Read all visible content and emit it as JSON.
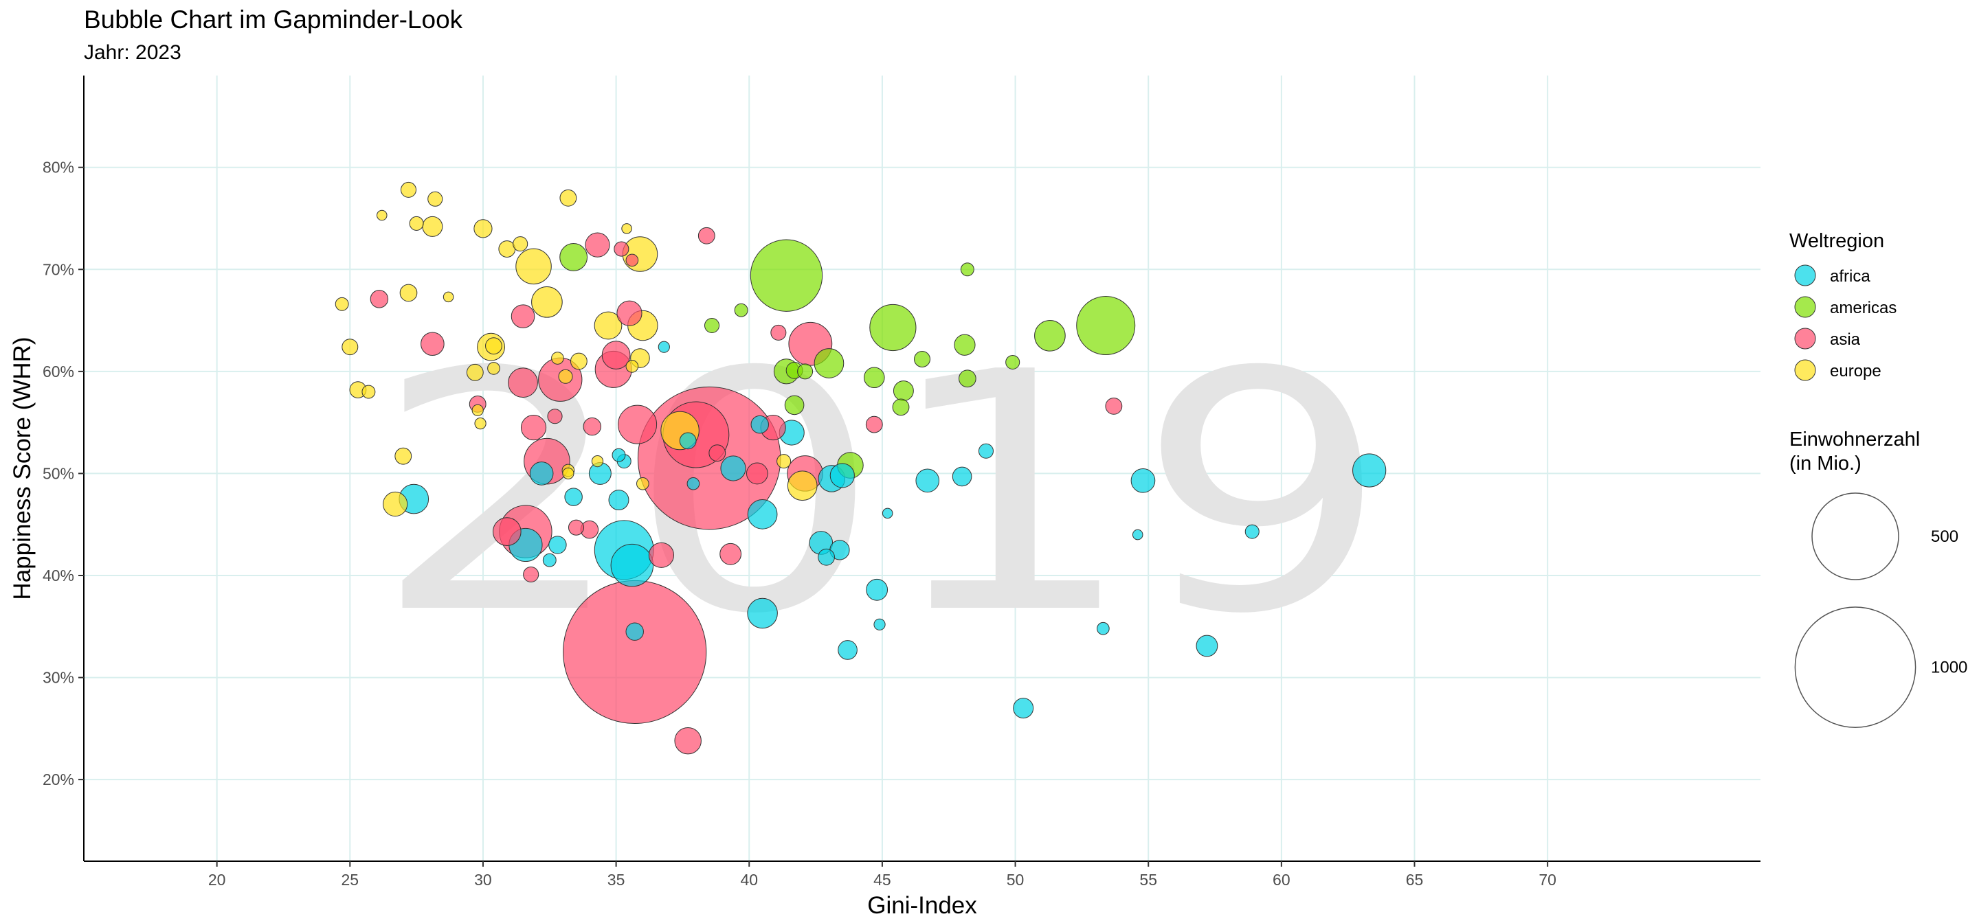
{
  "title": "Bubble Chart im Gapminder-Look",
  "subtitle": "Jahr: 2023",
  "watermark": "2019",
  "chart_data": {
    "type": "scatter",
    "xlabel": "Gini-Index",
    "ylabel": "Happiness Score (WHR)",
    "xlim": [
      15,
      78
    ],
    "ylim": [
      0.12,
      0.89
    ],
    "x_ticks": [
      20,
      25,
      30,
      35,
      40,
      45,
      50,
      55,
      60,
      65,
      70
    ],
    "x_tick_labels": [
      "20",
      "25",
      "30",
      "35",
      "40",
      "45",
      "50",
      "55",
      "60",
      "65",
      "70"
    ],
    "y_ticks": [
      0.2,
      0.3,
      0.4,
      0.5,
      0.6,
      0.7,
      0.8
    ],
    "y_tick_labels": [
      "20%",
      "30%",
      "40%",
      "50%",
      "60%",
      "70%",
      "80%"
    ],
    "grid": true,
    "legend_position": "right",
    "colors": {
      "africa": "#00d4e6",
      "americas": "#7fe000",
      "asia": "#ff4d6e",
      "europe": "#ffe119"
    },
    "color_legend": {
      "title": "Weltregion",
      "entries": [
        {
          "key": "africa",
          "label": "africa"
        },
        {
          "key": "americas",
          "label": "americas"
        },
        {
          "key": "asia",
          "label": "asia"
        },
        {
          "key": "europe",
          "label": "europe"
        }
      ]
    },
    "size_legend": {
      "title_line1": "Einwohnerzahl",
      "title_line2": "(in Mio.)",
      "entries": [
        {
          "value": 500,
          "label": "500"
        },
        {
          "value": 1000,
          "label": "1000"
        }
      ]
    },
    "series": [
      {
        "name": "africa",
        "points": [
          {
            "x": 35.3,
            "y": 0.425,
            "pop": 220
          },
          {
            "x": 35.6,
            "y": 0.41,
            "pop": 105
          },
          {
            "x": 27.4,
            "y": 0.475,
            "pop": 45
          },
          {
            "x": 31.6,
            "y": 0.43,
            "pop": 60
          },
          {
            "x": 32.2,
            "y": 0.5,
            "pop": 25
          },
          {
            "x": 32.8,
            "y": 0.43,
            "pop": 12
          },
          {
            "x": 32.5,
            "y": 0.415,
            "pop": 5
          },
          {
            "x": 33.4,
            "y": 0.477,
            "pop": 12
          },
          {
            "x": 34.4,
            "y": 0.5,
            "pop": 22
          },
          {
            "x": 35.1,
            "y": 0.518,
            "pop": 5
          },
          {
            "x": 35.3,
            "y": 0.512,
            "pop": 6
          },
          {
            "x": 35.1,
            "y": 0.474,
            "pop": 17
          },
          {
            "x": 35.7,
            "y": 0.345,
            "pop": 12
          },
          {
            "x": 36.8,
            "y": 0.624,
            "pop": 3
          },
          {
            "x": 37.7,
            "y": 0.532,
            "pop": 10
          },
          {
            "x": 37.9,
            "y": 0.49,
            "pop": 4
          },
          {
            "x": 39.4,
            "y": 0.505,
            "pop": 30
          },
          {
            "x": 40.4,
            "y": 0.548,
            "pop": 12
          },
          {
            "x": 40.5,
            "y": 0.46,
            "pop": 45
          },
          {
            "x": 40.5,
            "y": 0.363,
            "pop": 47
          },
          {
            "x": 41.6,
            "y": 0.54,
            "pop": 30
          },
          {
            "x": 42.7,
            "y": 0.432,
            "pop": 25
          },
          {
            "x": 42.9,
            "y": 0.418,
            "pop": 10
          },
          {
            "x": 43.1,
            "y": 0.495,
            "pop": 35
          },
          {
            "x": 43.5,
            "y": 0.498,
            "pop": 28
          },
          {
            "x": 43.4,
            "y": 0.425,
            "pop": 16
          },
          {
            "x": 43.7,
            "y": 0.327,
            "pop": 15
          },
          {
            "x": 44.8,
            "y": 0.386,
            "pop": 20
          },
          {
            "x": 44.9,
            "y": 0.352,
            "pop": 3
          },
          {
            "x": 45.2,
            "y": 0.461,
            "pop": 2
          },
          {
            "x": 46.7,
            "y": 0.493,
            "pop": 25
          },
          {
            "x": 48.0,
            "y": 0.497,
            "pop": 15
          },
          {
            "x": 48.9,
            "y": 0.522,
            "pop": 7
          },
          {
            "x": 50.3,
            "y": 0.27,
            "pop": 17
          },
          {
            "x": 53.3,
            "y": 0.348,
            "pop": 4
          },
          {
            "x": 54.6,
            "y": 0.44,
            "pop": 2
          },
          {
            "x": 54.8,
            "y": 0.493,
            "pop": 27
          },
          {
            "x": 57.2,
            "y": 0.331,
            "pop": 20
          },
          {
            "x": 58.9,
            "y": 0.443,
            "pop": 6
          },
          {
            "x": 63.3,
            "y": 0.503,
            "pop": 60
          }
        ]
      },
      {
        "name": "americas",
        "points": [
          {
            "x": 33.4,
            "y": 0.712,
            "pop": 38
          },
          {
            "x": 38.6,
            "y": 0.645,
            "pop": 7
          },
          {
            "x": 39.7,
            "y": 0.66,
            "pop": 5
          },
          {
            "x": 41.4,
            "y": 0.694,
            "pop": 335
          },
          {
            "x": 41.4,
            "y": 0.6,
            "pop": 30
          },
          {
            "x": 41.7,
            "y": 0.601,
            "pop": 10
          },
          {
            "x": 41.7,
            "y": 0.567,
            "pop": 15
          },
          {
            "x": 42.1,
            "y": 0.6,
            "pop": 8
          },
          {
            "x": 43.0,
            "y": 0.608,
            "pop": 45
          },
          {
            "x": 43.8,
            "y": 0.508,
            "pop": 33
          },
          {
            "x": 44.7,
            "y": 0.594,
            "pop": 18
          },
          {
            "x": 45.4,
            "y": 0.643,
            "pop": 128
          },
          {
            "x": 45.8,
            "y": 0.581,
            "pop": 17
          },
          {
            "x": 45.7,
            "y": 0.565,
            "pop": 10
          },
          {
            "x": 46.5,
            "y": 0.612,
            "pop": 9
          },
          {
            "x": 48.1,
            "y": 0.626,
            "pop": 19
          },
          {
            "x": 48.2,
            "y": 0.593,
            "pop": 11
          },
          {
            "x": 48.2,
            "y": 0.7,
            "pop": 5
          },
          {
            "x": 49.9,
            "y": 0.609,
            "pop": 6
          },
          {
            "x": 51.3,
            "y": 0.635,
            "pop": 50
          },
          {
            "x": 53.4,
            "y": 0.645,
            "pop": 215
          }
        ]
      },
      {
        "name": "asia",
        "points": [
          {
            "x": 38.5,
            "y": 0.515,
            "pop": 1420
          },
          {
            "x": 35.7,
            "y": 0.325,
            "pop": 1430
          },
          {
            "x": 38.0,
            "y": 0.538,
            "pop": 280
          },
          {
            "x": 31.6,
            "y": 0.443,
            "pop": 170
          },
          {
            "x": 32.4,
            "y": 0.512,
            "pop": 125
          },
          {
            "x": 32.9,
            "y": 0.592,
            "pop": 112
          },
          {
            "x": 35.8,
            "y": 0.548,
            "pop": 85
          },
          {
            "x": 42.3,
            "y": 0.627,
            "pop": 110
          },
          {
            "x": 42.1,
            "y": 0.5,
            "pop": 70
          },
          {
            "x": 34.9,
            "y": 0.602,
            "pop": 75
          },
          {
            "x": 35.0,
            "y": 0.616,
            "pop": 40
          },
          {
            "x": 35.5,
            "y": 0.657,
            "pop": 30
          },
          {
            "x": 34.3,
            "y": 0.724,
            "pop": 28
          },
          {
            "x": 31.5,
            "y": 0.654,
            "pop": 25
          },
          {
            "x": 31.5,
            "y": 0.589,
            "pop": 45
          },
          {
            "x": 28.1,
            "y": 0.627,
            "pop": 25
          },
          {
            "x": 30.9,
            "y": 0.443,
            "pop": 40
          },
          {
            "x": 31.9,
            "y": 0.545,
            "pop": 30
          },
          {
            "x": 34.1,
            "y": 0.546,
            "pop": 12
          },
          {
            "x": 36.7,
            "y": 0.42,
            "pop": 30
          },
          {
            "x": 37.7,
            "y": 0.238,
            "pop": 35
          },
          {
            "x": 39.3,
            "y": 0.421,
            "pop": 20
          },
          {
            "x": 38.4,
            "y": 0.733,
            "pop": 10
          },
          {
            "x": 38.8,
            "y": 0.52,
            "pop": 10
          },
          {
            "x": 40.3,
            "y": 0.5,
            "pop": 20
          },
          {
            "x": 40.9,
            "y": 0.545,
            "pop": 30
          },
          {
            "x": 41.1,
            "y": 0.638,
            "pop": 8
          },
          {
            "x": 44.7,
            "y": 0.548,
            "pop": 10
          },
          {
            "x": 26.1,
            "y": 0.671,
            "pop": 12
          },
          {
            "x": 29.8,
            "y": 0.568,
            "pop": 10
          },
          {
            "x": 31.8,
            "y": 0.401,
            "pop": 8
          },
          {
            "x": 32.7,
            "y": 0.556,
            "pop": 7
          },
          {
            "x": 33.5,
            "y": 0.447,
            "pop": 8
          },
          {
            "x": 34.0,
            "y": 0.445,
            "pop": 12
          },
          {
            "x": 35.2,
            "y": 0.72,
            "pop": 7
          },
          {
            "x": 35.6,
            "y": 0.709,
            "pop": 4
          },
          {
            "x": 53.7,
            "y": 0.566,
            "pop": 10
          }
        ]
      },
      {
        "name": "europe",
        "points": [
          {
            "x": 27.2,
            "y": 0.778,
            "pop": 8
          },
          {
            "x": 28.2,
            "y": 0.769,
            "pop": 7
          },
          {
            "x": 33.2,
            "y": 0.77,
            "pop": 10
          },
          {
            "x": 26.2,
            "y": 0.753,
            "pop": 2
          },
          {
            "x": 27.5,
            "y": 0.745,
            "pop": 6
          },
          {
            "x": 28.1,
            "y": 0.742,
            "pop": 17
          },
          {
            "x": 30.0,
            "y": 0.74,
            "pop": 13
          },
          {
            "x": 30.9,
            "y": 0.72,
            "pop": 10
          },
          {
            "x": 31.4,
            "y": 0.725,
            "pop": 7
          },
          {
            "x": 31.9,
            "y": 0.703,
            "pop": 70
          },
          {
            "x": 35.9,
            "y": 0.715,
            "pop": 67
          },
          {
            "x": 35.4,
            "y": 0.74,
            "pop": 2
          },
          {
            "x": 27.2,
            "y": 0.677,
            "pop": 11
          },
          {
            "x": 28.7,
            "y": 0.673,
            "pop": 2
          },
          {
            "x": 24.7,
            "y": 0.666,
            "pop": 5
          },
          {
            "x": 32.4,
            "y": 0.668,
            "pop": 50
          },
          {
            "x": 25.0,
            "y": 0.624,
            "pop": 9
          },
          {
            "x": 30.3,
            "y": 0.624,
            "pop": 38
          },
          {
            "x": 30.4,
            "y": 0.625,
            "pop": 10
          },
          {
            "x": 33.6,
            "y": 0.61,
            "pop": 10
          },
          {
            "x": 34.7,
            "y": 0.645,
            "pop": 38
          },
          {
            "x": 36.0,
            "y": 0.645,
            "pop": 47
          },
          {
            "x": 35.9,
            "y": 0.613,
            "pop": 15
          },
          {
            "x": 30.4,
            "y": 0.603,
            "pop": 4
          },
          {
            "x": 29.7,
            "y": 0.599,
            "pop": 10
          },
          {
            "x": 32.8,
            "y": 0.613,
            "pop": 4
          },
          {
            "x": 33.1,
            "y": 0.595,
            "pop": 6
          },
          {
            "x": 35.6,
            "y": 0.605,
            "pop": 4
          },
          {
            "x": 25.3,
            "y": 0.582,
            "pop": 10
          },
          {
            "x": 25.7,
            "y": 0.58,
            "pop": 5
          },
          {
            "x": 29.8,
            "y": 0.562,
            "pop": 3
          },
          {
            "x": 29.9,
            "y": 0.549,
            "pop": 3
          },
          {
            "x": 27.0,
            "y": 0.517,
            "pop": 10
          },
          {
            "x": 26.7,
            "y": 0.47,
            "pop": 28
          },
          {
            "x": 33.2,
            "y": 0.5,
            "pop": 3
          },
          {
            "x": 33.2,
            "y": 0.503,
            "pop": 4
          },
          {
            "x": 34.3,
            "y": 0.512,
            "pop": 3
          },
          {
            "x": 36.0,
            "y": 0.49,
            "pop": 4
          },
          {
            "x": 37.4,
            "y": 0.542,
            "pop": 83
          },
          {
            "x": 41.3,
            "y": 0.512,
            "pop": 6
          },
          {
            "x": 42.0,
            "y": 0.488,
            "pop": 45
          }
        ]
      }
    ]
  }
}
